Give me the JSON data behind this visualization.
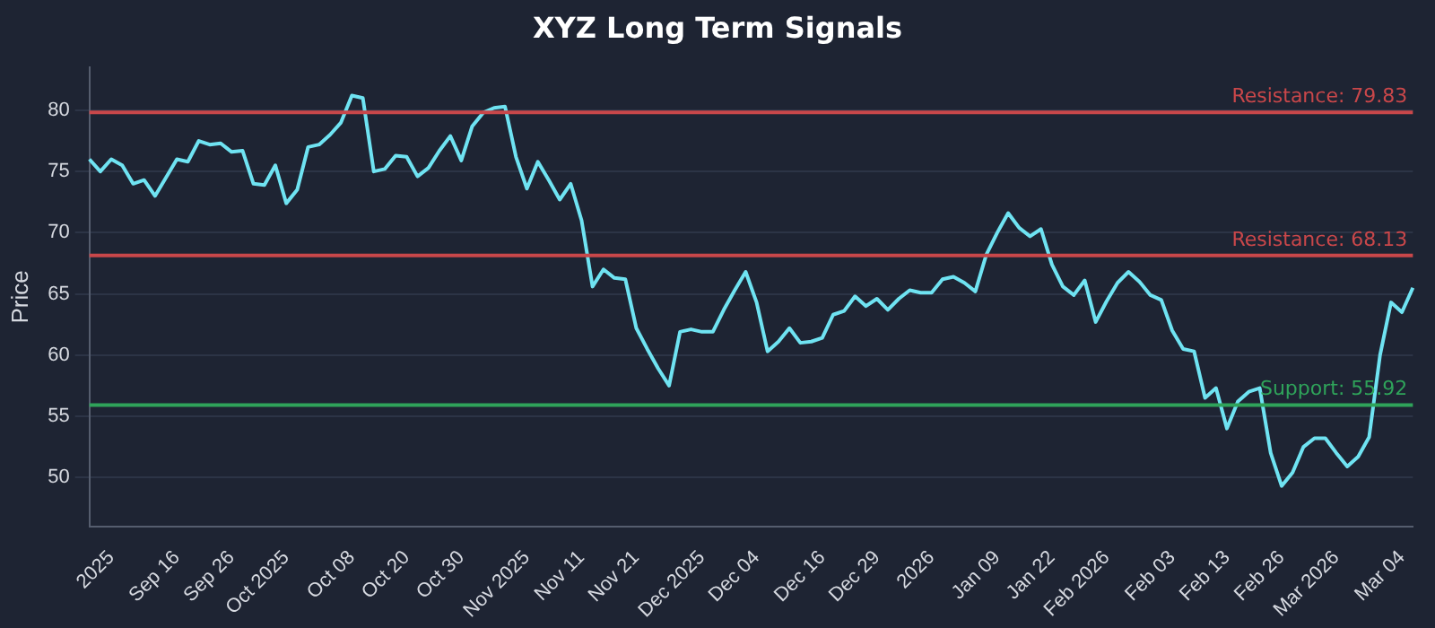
{
  "chart_data": {
    "type": "line",
    "title": "XYZ Long Term Signals",
    "ylabel": "Price",
    "categories": [
      null,
      null,
      "2025",
      null,
      null,
      null,
      null,
      null,
      "Sep 16",
      null,
      null,
      null,
      null,
      "Sep 26",
      null,
      null,
      null,
      null,
      "Oct 2025",
      null,
      null,
      null,
      null,
      null,
      "Oct 08",
      null,
      null,
      null,
      null,
      "Oct 20",
      null,
      null,
      null,
      null,
      "Oct 30",
      null,
      null,
      null,
      null,
      null,
      "Nov 2025",
      null,
      null,
      null,
      null,
      "Nov 11",
      null,
      null,
      null,
      null,
      "Nov 21",
      null,
      null,
      null,
      null,
      null,
      "Dec 2025",
      null,
      null,
      null,
      null,
      "Dec 04",
      null,
      null,
      null,
      null,
      null,
      "Dec 16",
      null,
      null,
      null,
      null,
      "Dec 29",
      null,
      null,
      null,
      null,
      "2026",
      null,
      null,
      null,
      null,
      null,
      "Jan 09",
      null,
      null,
      null,
      null,
      "Jan 22",
      null,
      null,
      null,
      null,
      "Feb 2026",
      null,
      null,
      null,
      null,
      null,
      "Feb 03",
      null,
      null,
      null,
      null,
      "Feb 13",
      null,
      null,
      null,
      null,
      "Feb 26",
      null,
      null,
      null,
      null,
      "Mar 2026",
      null,
      null,
      null,
      null,
      null,
      "Mar 04",
      null
    ],
    "series": [
      {
        "color": "#6fe3f2",
        "values": [
          76,
          75,
          76,
          75.5,
          74,
          74.3,
          73,
          74.5,
          76,
          75.8,
          77.5,
          77.2,
          77.3,
          76.6,
          76.7,
          74,
          73.9,
          75.5,
          72.4,
          73.5,
          77,
          77.2,
          78,
          79,
          81.2,
          81,
          75,
          75.2,
          76.3,
          76.2,
          74.6,
          75.3,
          76.7,
          77.9,
          75.9,
          78.7,
          79.8,
          80.2,
          80.3,
          76.2,
          73.6,
          75.8,
          74.3,
          72.7,
          74,
          71,
          65.6,
          67,
          66.3,
          66.2,
          62.2,
          60.5,
          58.9,
          57.5,
          61.9,
          62.1,
          61.9,
          61.9,
          63.7,
          65.3,
          66.8,
          64.3,
          60.3,
          61.1,
          62.2,
          61,
          61.1,
          61.4,
          63.3,
          63.6,
          64.8,
          64,
          64.6,
          63.7,
          64.6,
          65.3,
          65.1,
          65.1,
          66.2,
          66.4,
          65.9,
          65.2,
          68.2,
          70,
          71.6,
          70.4,
          69.7,
          70.3,
          67.4,
          65.6,
          64.9,
          66.1,
          62.7,
          64.4,
          65.9,
          66.8,
          66,
          64.9,
          64.5,
          62,
          60.5,
          60.3,
          56.5,
          57.3,
          54,
          56.2,
          57,
          57.3,
          52,
          49.3,
          50.4,
          52.5,
          53.2,
          53.2,
          52,
          50.9,
          51.7,
          53.3,
          60,
          64.3,
          63.5,
          65.5
        ]
      }
    ],
    "ylim": [
      46,
      83.5
    ],
    "yticks": [
      50,
      55,
      60,
      65,
      70,
      75,
      80
    ],
    "grid": "y",
    "legend": false,
    "marker": "none",
    "line_style": "solid",
    "ref_lines": [
      {
        "axis": "y",
        "value": 79.83,
        "label": "Resistance: 79.83",
        "color": "#c9474a"
      },
      {
        "axis": "y",
        "value": 68.13,
        "label": "Resistance: 68.13",
        "color": "#c9474a"
      },
      {
        "axis": "y",
        "value": 55.92,
        "label": "Support: 55.92",
        "color": "#2fa35a"
      }
    ]
  }
}
